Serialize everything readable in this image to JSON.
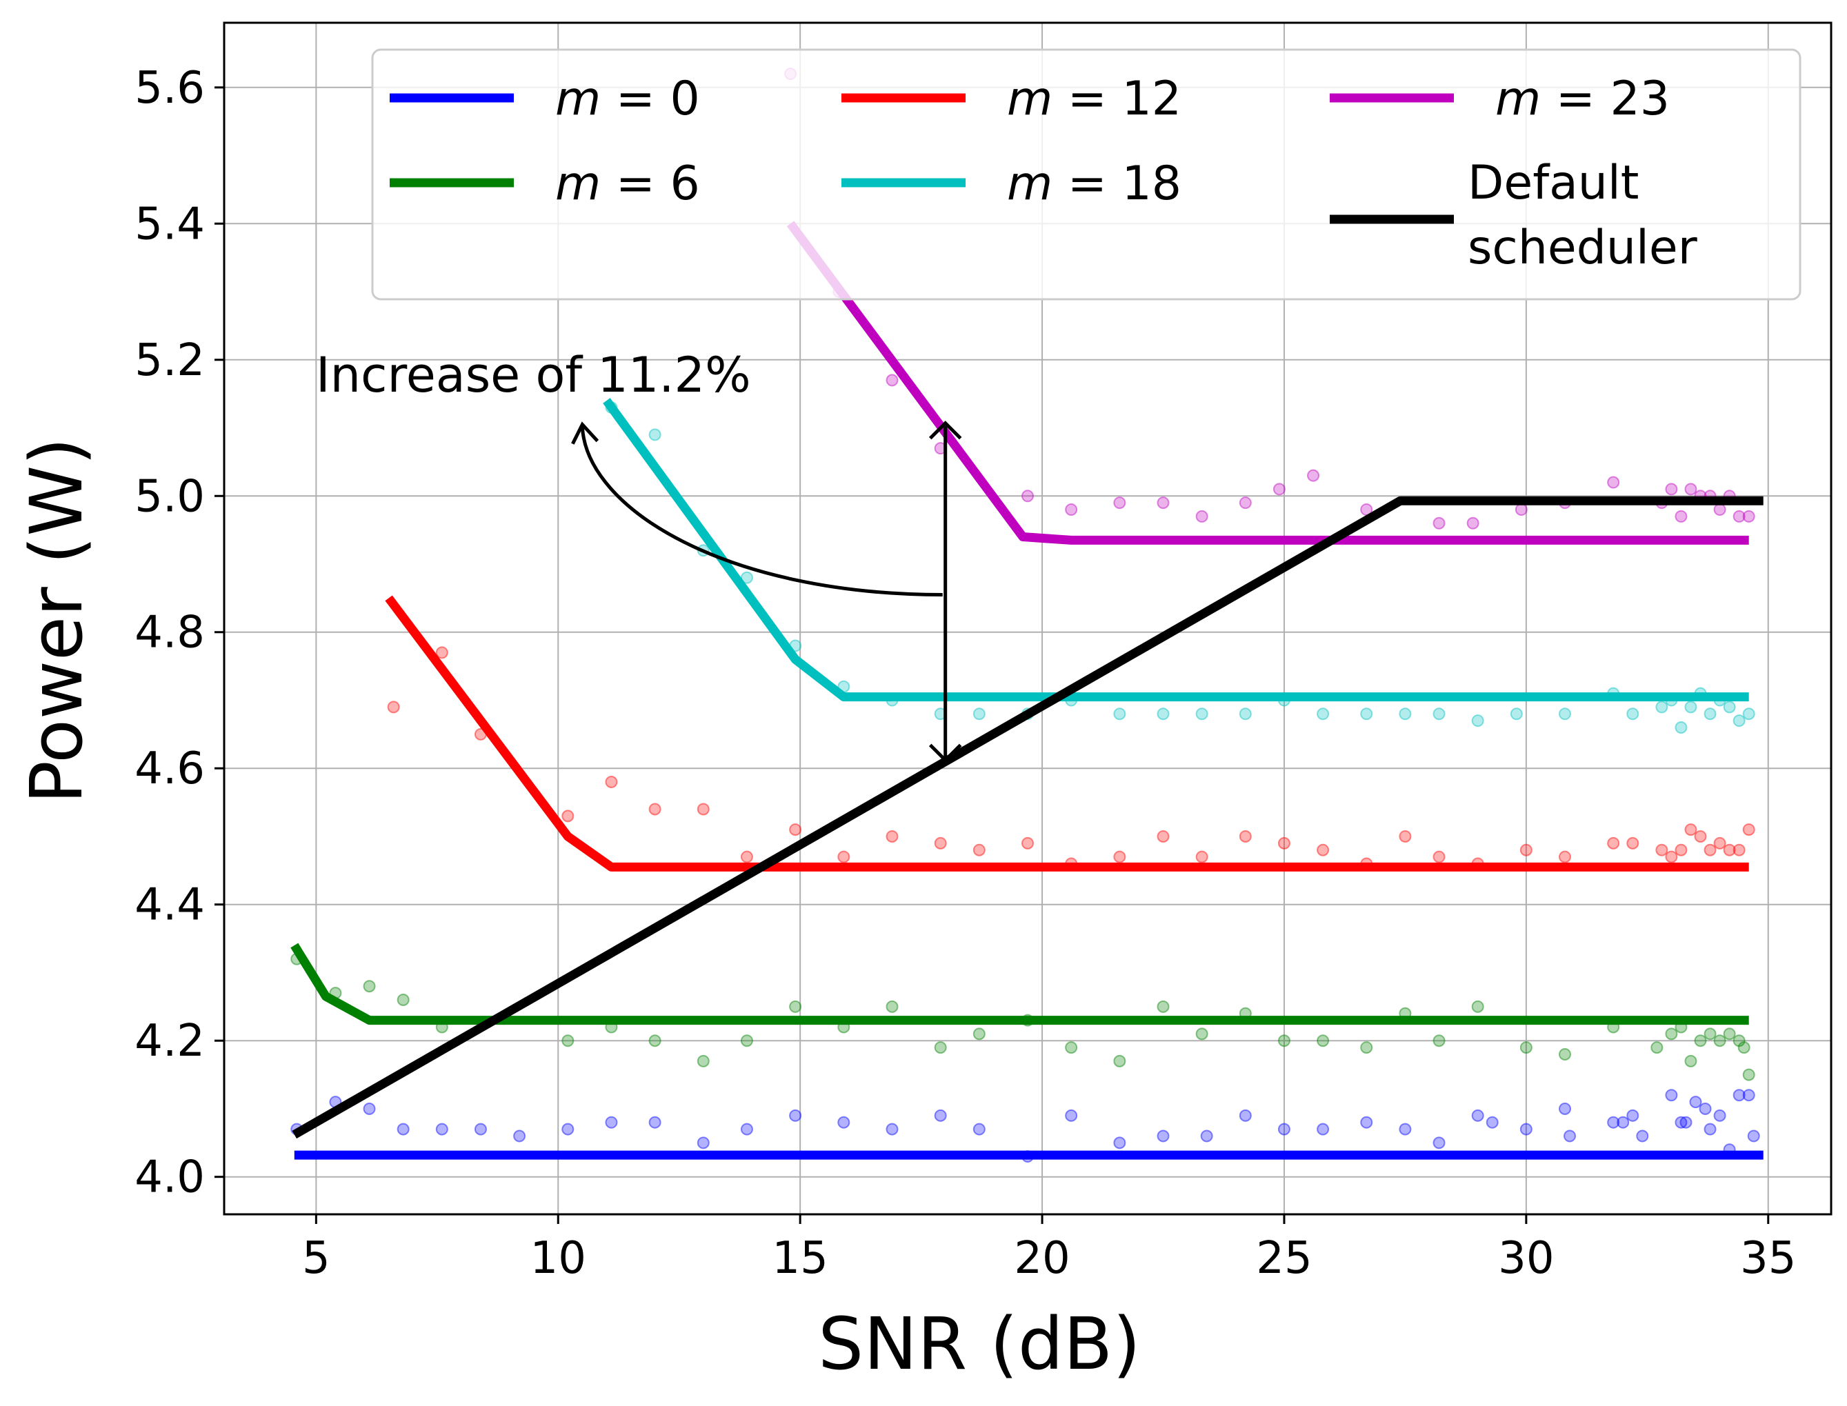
{
  "chart_data": {
    "type": "line",
    "xlabel": "SNR (dB)",
    "ylabel": "Power (W)",
    "xlim": [
      3.1,
      36.3
    ],
    "ylim": [
      3.945,
      5.695
    ],
    "xticks": [
      "5",
      "10",
      "15",
      "20",
      "25",
      "30",
      "35"
    ],
    "yticks": [
      "4.0",
      "4.2",
      "4.4",
      "4.6",
      "4.8",
      "5.0",
      "5.2",
      "5.4",
      "5.6"
    ],
    "grid": true,
    "legend": {
      "placement": "top-right",
      "columns": 3,
      "order": [
        "m0",
        "m6",
        "m12",
        "m18",
        "m23",
        "default"
      ]
    },
    "series": [
      {
        "id": "m0",
        "name": "m = 0",
        "m_value": "0",
        "color": "#0000ff",
        "x": [
          4.55,
          34.9
        ],
        "y": [
          4.032,
          4.032
        ],
        "scatter_x": [
          4.6,
          5.4,
          6.1,
          6.8,
          7.6,
          8.4,
          9.2,
          10.2,
          11.1,
          12.0,
          13.0,
          13.9,
          14.9,
          15.9,
          16.9,
          17.9,
          18.7,
          19.7,
          20.6,
          21.6,
          22.5,
          23.4,
          24.2,
          25.0,
          25.8,
          26.7,
          27.5,
          28.2,
          29.0,
          29.3,
          30.0,
          30.8,
          30.9,
          31.8,
          32.0,
          32.2,
          32.4,
          33.0,
          33.2,
          33.3,
          33.5,
          33.7,
          33.8,
          34.0,
          34.2,
          34.4,
          34.6,
          34.7
        ],
        "scatter_y": [
          4.07,
          4.11,
          4.1,
          4.07,
          4.07,
          4.07,
          4.06,
          4.07,
          4.08,
          4.08,
          4.05,
          4.07,
          4.09,
          4.08,
          4.07,
          4.09,
          4.07,
          4.03,
          4.09,
          4.05,
          4.06,
          4.06,
          4.09,
          4.07,
          4.07,
          4.08,
          4.07,
          4.05,
          4.09,
          4.08,
          4.07,
          4.1,
          4.06,
          4.08,
          4.08,
          4.09,
          4.06,
          4.12,
          4.08,
          4.08,
          4.11,
          4.1,
          4.07,
          4.09,
          4.04,
          4.12,
          4.12,
          4.06
        ]
      },
      {
        "id": "m6",
        "name": "m = 6",
        "m_value": "6",
        "color": "#008000",
        "x": [
          4.55,
          5.2,
          6.1,
          34.6
        ],
        "y": [
          4.34,
          4.265,
          4.23,
          4.23
        ],
        "scatter_x": [
          4.6,
          5.4,
          6.1,
          6.8,
          7.6,
          10.2,
          11.1,
          12.0,
          13.0,
          13.9,
          14.9,
          15.9,
          16.9,
          17.9,
          18.7,
          19.7,
          20.6,
          21.6,
          22.5,
          23.3,
          24.2,
          25.0,
          25.8,
          26.7,
          27.5,
          28.2,
          29.0,
          30.0,
          30.8,
          31.8,
          32.7,
          33.0,
          33.2,
          33.4,
          33.6,
          33.8,
          34.0,
          34.2,
          34.4,
          34.5,
          34.6
        ],
        "scatter_y": [
          4.32,
          4.27,
          4.28,
          4.26,
          4.22,
          4.2,
          4.22,
          4.2,
          4.17,
          4.2,
          4.25,
          4.22,
          4.25,
          4.19,
          4.21,
          4.23,
          4.19,
          4.17,
          4.25,
          4.21,
          4.24,
          4.2,
          4.2,
          4.19,
          4.24,
          4.2,
          4.25,
          4.19,
          4.18,
          4.22,
          4.19,
          4.21,
          4.22,
          4.17,
          4.2,
          4.21,
          4.2,
          4.21,
          4.2,
          4.19,
          4.15
        ]
      },
      {
        "id": "m12",
        "name": "m = 12",
        "m_value": "12",
        "color": "#ff0000",
        "x": [
          6.5,
          10.2,
          11.1,
          34.6
        ],
        "y": [
          4.85,
          4.5,
          4.455,
          4.455
        ],
        "scatter_x": [
          6.6,
          7.6,
          8.4,
          10.2,
          11.1,
          12.0,
          13.0,
          13.9,
          14.9,
          15.9,
          16.9,
          17.9,
          18.7,
          19.7,
          20.6,
          21.6,
          22.5,
          23.3,
          24.2,
          25.0,
          25.8,
          26.7,
          27.5,
          28.2,
          29.0,
          30.0,
          30.8,
          31.8,
          32.2,
          32.8,
          33.0,
          33.2,
          33.4,
          33.6,
          33.8,
          34.0,
          34.2,
          34.4,
          34.6
        ],
        "scatter_y": [
          4.69,
          4.77,
          4.65,
          4.53,
          4.58,
          4.54,
          4.54,
          4.47,
          4.51,
          4.47,
          4.5,
          4.49,
          4.48,
          4.49,
          4.46,
          4.47,
          4.5,
          4.47,
          4.5,
          4.49,
          4.48,
          4.46,
          4.5,
          4.47,
          4.46,
          4.48,
          4.47,
          4.49,
          4.49,
          4.48,
          4.47,
          4.48,
          4.51,
          4.5,
          4.48,
          4.49,
          4.48,
          4.48,
          4.51
        ]
      },
      {
        "id": "m18",
        "name": "m = 18",
        "m_value": "18",
        "color": "#00bfbf",
        "x": [
          11.0,
          14.9,
          15.9,
          34.6
        ],
        "y": [
          5.14,
          4.76,
          4.705,
          4.705
        ],
        "scatter_x": [
          11.1,
          12.0,
          13.0,
          13.9,
          14.9,
          15.9,
          16.9,
          17.9,
          18.7,
          19.7,
          20.6,
          21.6,
          22.5,
          23.3,
          24.2,
          25.0,
          25.8,
          26.7,
          27.5,
          28.2,
          29.0,
          29.8,
          30.8,
          31.8,
          32.2,
          32.8,
          33.0,
          33.2,
          33.4,
          33.6,
          33.8,
          34.0,
          34.2,
          34.4,
          34.6
        ],
        "scatter_y": [
          5.13,
          5.09,
          4.92,
          4.88,
          4.78,
          4.72,
          4.7,
          4.68,
          4.68,
          4.68,
          4.7,
          4.68,
          4.68,
          4.68,
          4.68,
          4.7,
          4.68,
          4.68,
          4.68,
          4.68,
          4.67,
          4.68,
          4.68,
          4.71,
          4.68,
          4.69,
          4.7,
          4.66,
          4.69,
          4.71,
          4.68,
          4.7,
          4.69,
          4.67,
          4.68
        ]
      },
      {
        "id": "m23",
        "name": "m = 23",
        "m_value": "23",
        "color": "#bf00bf",
        "x": [
          14.8,
          19.6,
          20.6,
          34.6
        ],
        "y": [
          5.4,
          4.94,
          4.935,
          4.935
        ],
        "scatter_x": [
          14.8,
          15.8,
          16.9,
          17.9,
          19.7,
          20.6,
          21.6,
          22.5,
          23.3,
          24.2,
          24.9,
          25.6,
          26.7,
          28.2,
          28.9,
          29.9,
          30.8,
          31.8,
          32.8,
          33.0,
          33.2,
          33.4,
          33.6,
          33.8,
          34.0,
          34.2,
          34.4,
          34.6
        ],
        "scatter_y": [
          5.62,
          5.3,
          5.17,
          5.07,
          5.0,
          4.98,
          4.99,
          4.99,
          4.97,
          4.99,
          5.01,
          5.03,
          4.98,
          4.96,
          4.96,
          4.98,
          4.99,
          5.02,
          4.99,
          5.01,
          4.97,
          5.01,
          5.0,
          5.0,
          4.98,
          5.0,
          4.97,
          4.97
        ]
      },
      {
        "id": "default",
        "name": "Default scheduler",
        "name_line1": "Default",
        "name_line2": "scheduler",
        "color": "#000000",
        "x": [
          4.55,
          27.4,
          34.9
        ],
        "y": [
          4.062,
          4.993,
          4.993
        ]
      }
    ],
    "annotations": [
      {
        "text": "Increase of 11.2%",
        "arrow_x": 18.0,
        "arrow_from": 4.612,
        "arrow_to": 5.107
      }
    ]
  }
}
